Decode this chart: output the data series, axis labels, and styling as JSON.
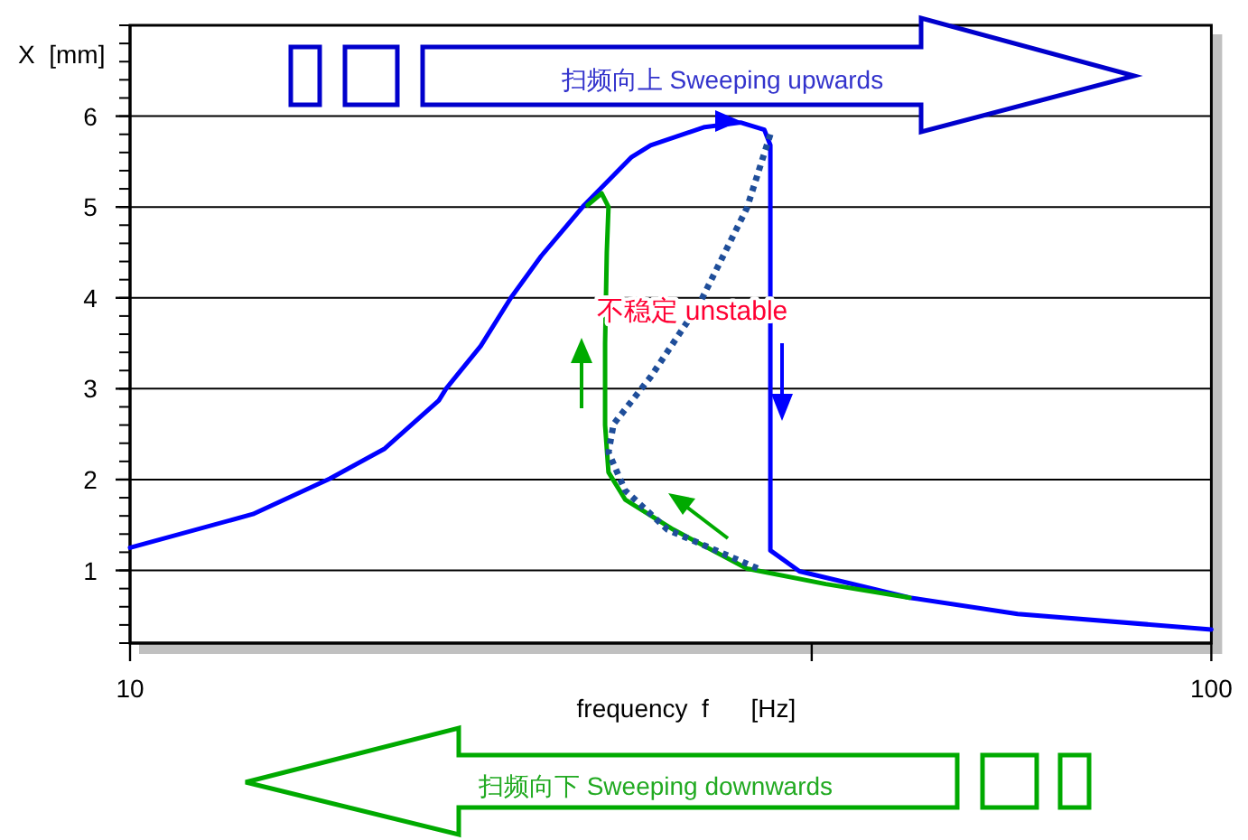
{
  "chart_data": {
    "type": "line",
    "xlabel": "frequency  f      [Hz]",
    "ylabel": "X  [mm]",
    "log": "x",
    "grid": "y",
    "marker": "none",
    "xlim": [
      10,
      100
    ],
    "ylim": [
      0.2,
      7
    ],
    "xticks": [
      10,
      {
        "value": 42.7,
        "label": null
      },
      100
    ],
    "yticks": [
      1,
      2,
      3,
      4,
      5,
      6
    ],
    "annotations": [
      "扫频向上 Sweeping upwards",
      "扫频向下 Sweeping downwards",
      {
        "text": "不稳定 unstable",
        "x": 33.1,
        "y": 3.86
      }
    ],
    "series": [
      {
        "color": "#0000ff",
        "line_style": "solid",
        "x": [
          10,
          12.99,
          15.3,
          17.2,
          19.3,
          19.6,
          21.1,
          22.5,
          24.0,
          26.3,
          29.1,
          30.3,
          34.0,
          36.7,
          38.6,
          39.1,
          39.1,
          41.6,
          52.6,
          66.2,
          100
        ],
        "values": [
          1.25,
          1.62,
          2.01,
          2.34,
          2.87,
          3.0,
          3.47,
          4.0,
          4.46,
          5.02,
          5.55,
          5.68,
          5.88,
          5.93,
          5.85,
          5.68,
          1.22,
          0.99,
          0.7,
          0.52,
          0.35
        ]
      },
      {
        "color": "#00aa00",
        "line_style": "solid",
        "x": [
          52.6,
          44.0,
          37.2,
          31.8,
          28.7,
          27.7,
          27.5,
          27.5,
          27.6,
          27.7,
          27.3,
          26.5
        ],
        "values": [
          0.7,
          0.85,
          1.02,
          1.45,
          1.78,
          2.08,
          2.6,
          3.5,
          4.5,
          5.0,
          5.15,
          5.02
        ]
      },
      {
        "color": "#1f4e9a",
        "line_style": "dotted",
        "x": [
          39.1,
          37.2,
          33.6,
          30.3,
          28.0,
          27.7,
          28.7,
          31.4,
          38.1
        ],
        "values": [
          5.8,
          4.99,
          3.93,
          3.13,
          2.61,
          2.3,
          1.88,
          1.45,
          1.02
        ]
      }
    ]
  }
}
